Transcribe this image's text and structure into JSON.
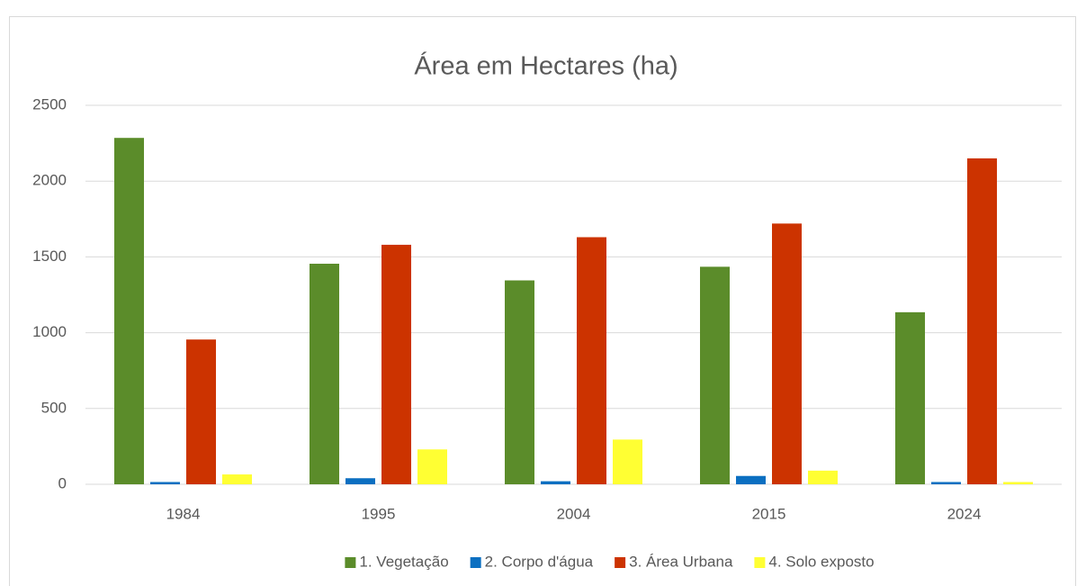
{
  "chart_data": {
    "type": "bar",
    "title": "Área em Hectares (ha)",
    "categories": [
      "1984",
      "1995",
      "2004",
      "2015",
      "2024"
    ],
    "series": [
      {
        "name": "1. Vegetação",
        "color": "#5b8c2a",
        "values": [
          2285,
          1455,
          1345,
          1435,
          1135
        ]
      },
      {
        "name": "2. Corpo d'água",
        "color": "#0b6fc1",
        "values": [
          15,
          40,
          20,
          55,
          15
        ]
      },
      {
        "name": "3. Área Urbana",
        "color": "#cc3300",
        "values": [
          955,
          1580,
          1630,
          1720,
          2150
        ]
      },
      {
        "name": "4. Solo exposto",
        "color": "#ffff33",
        "values": [
          65,
          230,
          295,
          90,
          15
        ]
      }
    ],
    "ylim": [
      0,
      2500
    ],
    "yticks": [
      0,
      500,
      1000,
      1500,
      2000,
      2500
    ],
    "grid": true,
    "legend": "bottom"
  }
}
